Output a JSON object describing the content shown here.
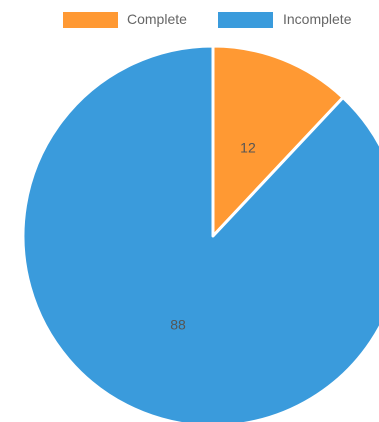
{
  "chart_data": {
    "type": "pie",
    "categories": [
      "Complete",
      "Incomplete"
    ],
    "values": [
      12,
      88
    ],
    "colors": [
      "#FF9933",
      "#3A9BDC"
    ],
    "title": "",
    "legend_position": "top-right",
    "show_data_labels": true
  }
}
